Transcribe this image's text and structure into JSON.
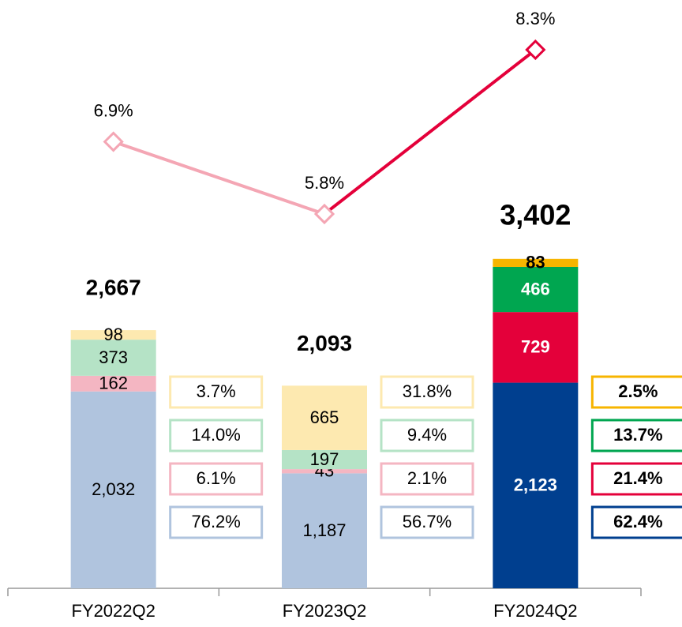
{
  "chart_data": {
    "type": "stacked-bar-line",
    "categories": [
      "FY2022Q2",
      "FY2023Q2",
      "FY2024Q2"
    ],
    "ylim": [
      0,
      6000
    ],
    "y2lim": [
      0.1,
      8.95
    ],
    "series": [
      {
        "colors": [
          "#b0c4de",
          "#b0c4de",
          "#003f8f"
        ],
        "values": [
          2032,
          1187,
          2123
        ],
        "value_labels": [
          "2,032",
          "1,187",
          "2,123"
        ],
        "shares": [
          76.2,
          56.7,
          62.4
        ],
        "share_labels": [
          "76.2%",
          "56.7%",
          "62.4%"
        ]
      },
      {
        "colors": [
          "#f4b6c2",
          "#f4b6c2",
          "#e4003a"
        ],
        "values": [
          162,
          43,
          729
        ],
        "shares": [
          6.1,
          2.1,
          21.4
        ],
        "share_labels": [
          "6.1%",
          "2.1%",
          "21.4%"
        ]
      },
      {
        "colors": [
          "#b5e3c6",
          "#b5e3c6",
          "#00a650"
        ],
        "values": [
          373,
          197,
          466
        ],
        "shares": [
          14.0,
          9.4,
          13.7
        ],
        "share_labels": [
          "14.0%",
          "9.4%",
          "13.7%"
        ]
      },
      {
        "colors": [
          "#fde9b0",
          "#fde9b0",
          "#f7b500"
        ],
        "values": [
          98,
          665,
          83
        ],
        "shares": [
          3.7,
          31.8,
          2.5
        ],
        "share_labels": [
          "3.7%",
          "31.8%",
          "2.5%"
        ]
      }
    ],
    "totals": {
      "values": [
        2667,
        2093,
        3402
      ],
      "value_labels": [
        "2,667",
        "2,093",
        "3,402"
      ]
    },
    "line": {
      "axis": "y2",
      "colors": [
        "#f4a6b4",
        "#f4a6b4",
        "#e4003a"
      ],
      "values": [
        6.9,
        5.8,
        8.3
      ],
      "value_labels": [
        "6.9%",
        "5.8%",
        "8.3%"
      ]
    }
  }
}
